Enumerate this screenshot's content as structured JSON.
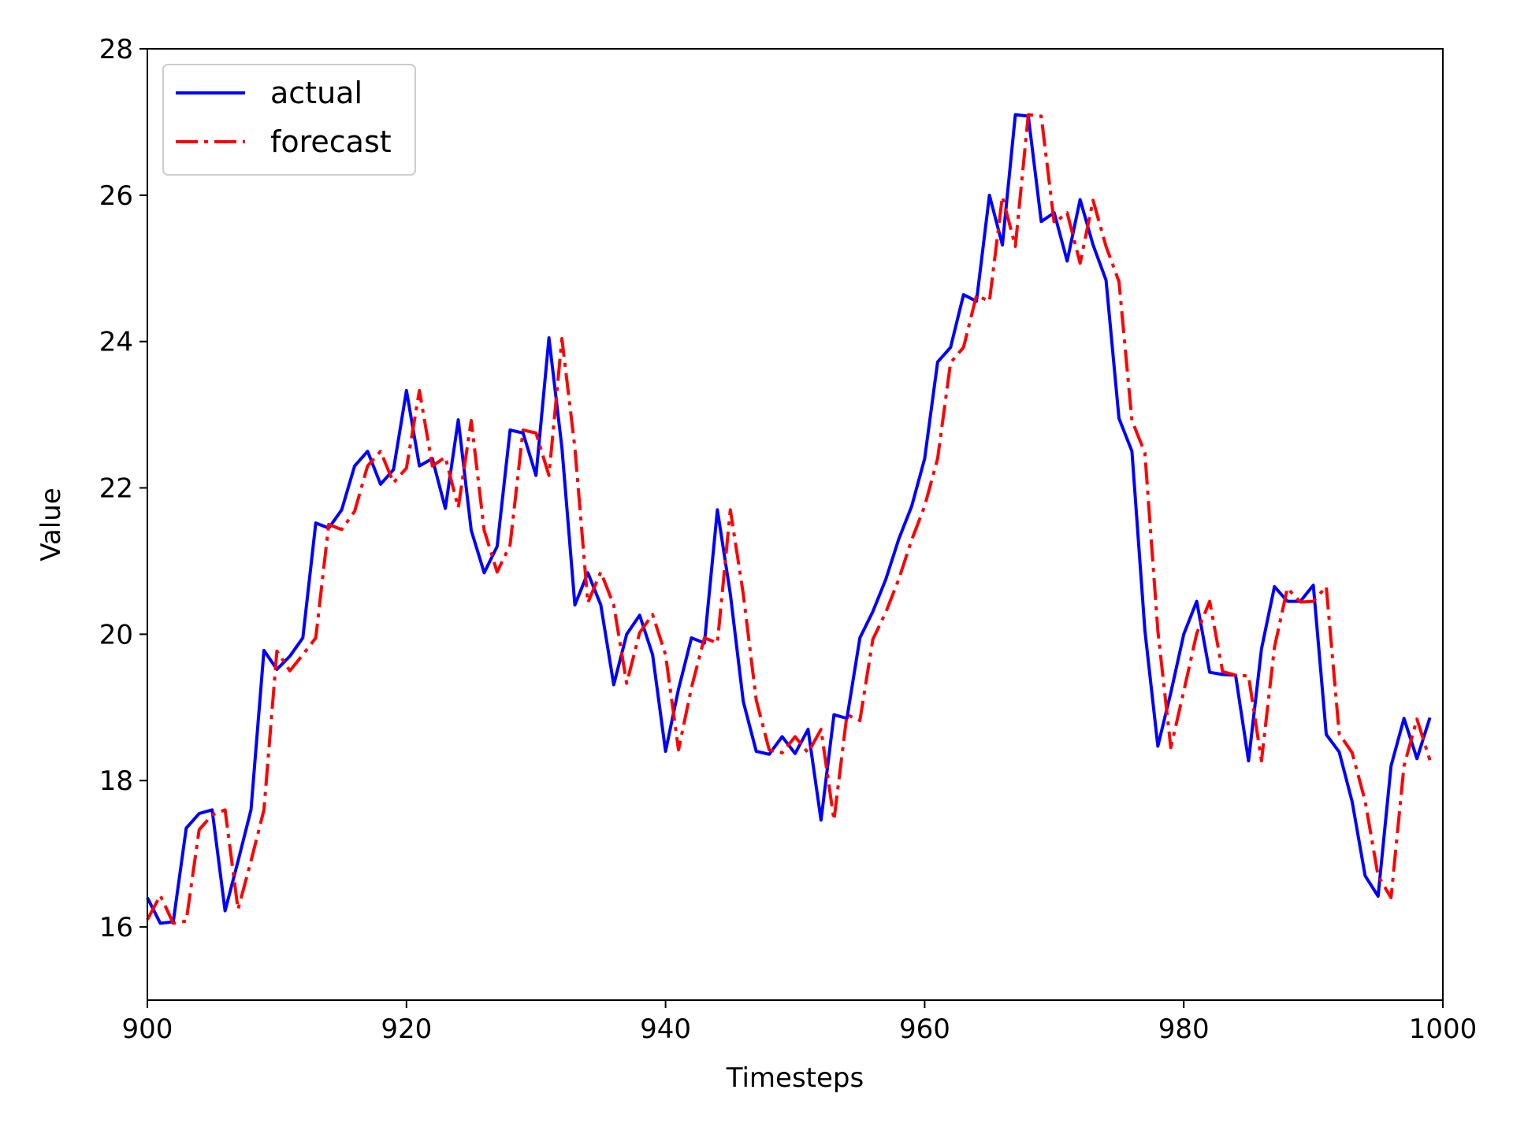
{
  "chart_data": {
    "type": "line",
    "xlabel": "Timesteps",
    "ylabel": "Value",
    "xlim": [
      900,
      1000
    ],
    "ylim": [
      15,
      28
    ],
    "xticks": [
      900,
      920,
      940,
      960,
      980,
      1000
    ],
    "yticks": [
      16,
      18,
      20,
      22,
      24,
      26,
      28
    ],
    "grid": false,
    "legend_position": "top-left",
    "x": [
      900,
      901,
      902,
      903,
      904,
      905,
      906,
      907,
      908,
      909,
      910,
      911,
      912,
      913,
      914,
      915,
      916,
      917,
      918,
      919,
      920,
      921,
      922,
      923,
      924,
      925,
      926,
      927,
      928,
      929,
      930,
      931,
      932,
      933,
      934,
      935,
      936,
      937,
      938,
      939,
      940,
      941,
      942,
      943,
      944,
      945,
      946,
      947,
      948,
      949,
      950,
      951,
      952,
      953,
      954,
      955,
      956,
      957,
      958,
      959,
      960,
      961,
      962,
      963,
      964,
      965,
      966,
      967,
      968,
      969,
      970,
      971,
      972,
      973,
      974,
      975,
      976,
      977,
      978,
      979,
      980,
      981,
      982,
      983,
      984,
      985,
      986,
      987,
      988,
      989,
      990,
      991,
      992,
      993,
      994,
      995,
      996,
      997,
      998,
      999
    ],
    "series": [
      {
        "name": "actual",
        "color": "#0000ff",
        "style": "solid",
        "values": [
          16.4,
          16.05,
          16.07,
          17.35,
          17.55,
          17.6,
          16.22,
          16.9,
          17.6,
          19.78,
          19.52,
          19.7,
          19.95,
          21.52,
          21.45,
          21.7,
          22.3,
          22.5,
          22.05,
          22.25,
          23.33,
          22.3,
          22.4,
          21.72,
          22.93,
          21.42,
          20.84,
          21.2,
          22.79,
          22.75,
          22.17,
          24.05,
          22.55,
          20.4,
          20.84,
          20.4,
          19.31,
          20.0,
          20.26,
          19.72,
          18.4,
          19.25,
          19.95,
          19.88,
          21.7,
          20.55,
          19.08,
          18.4,
          18.36,
          18.6,
          18.37,
          18.7,
          17.46,
          18.9,
          18.85,
          19.95,
          20.31,
          20.75,
          21.3,
          21.75,
          22.4,
          23.72,
          23.92,
          24.64,
          24.55,
          26.0,
          25.32,
          27.1,
          27.08,
          25.64,
          25.76,
          25.1,
          25.94,
          25.32,
          24.84,
          22.95,
          22.5,
          20.05,
          18.47,
          19.2,
          20.0,
          20.45,
          19.48,
          19.45,
          19.44,
          18.27,
          19.8,
          20.65,
          20.45,
          20.45,
          20.67,
          18.63,
          18.39,
          17.71,
          16.7,
          16.42,
          18.2,
          18.85,
          18.3,
          18.86
        ]
      },
      {
        "name": "forecast",
        "color": "#ff0000",
        "style": "dashdot",
        "values": [
          16.1,
          16.43,
          16.05,
          16.08,
          17.33,
          17.53,
          17.6,
          16.24,
          16.9,
          17.6,
          19.77,
          19.5,
          19.72,
          19.95,
          21.5,
          21.43,
          21.68,
          22.3,
          22.5,
          22.07,
          22.27,
          23.33,
          22.3,
          22.42,
          21.73,
          22.92,
          21.42,
          20.85,
          21.22,
          22.79,
          22.75,
          22.17,
          24.04,
          22.55,
          20.43,
          20.85,
          20.4,
          19.33,
          20.02,
          20.27,
          19.72,
          18.42,
          19.27,
          19.95,
          19.88,
          21.7,
          20.55,
          19.1,
          18.42,
          18.38,
          18.6,
          18.38,
          18.7,
          17.46,
          18.9,
          18.82,
          19.93,
          20.3,
          20.75,
          21.29,
          21.75,
          22.4,
          23.71,
          23.92,
          24.63,
          24.55,
          25.98,
          25.3,
          27.1,
          27.08,
          25.62,
          25.76,
          25.07,
          25.93,
          25.3,
          24.82,
          22.92,
          22.48,
          20.05,
          18.45,
          19.22,
          20.01,
          20.45,
          19.49,
          19.44,
          19.43,
          18.27,
          19.82,
          20.63,
          20.44,
          20.45,
          20.65,
          18.64,
          18.38,
          17.72,
          16.7,
          16.4,
          18.2,
          18.84,
          18.28
        ]
      }
    ]
  }
}
